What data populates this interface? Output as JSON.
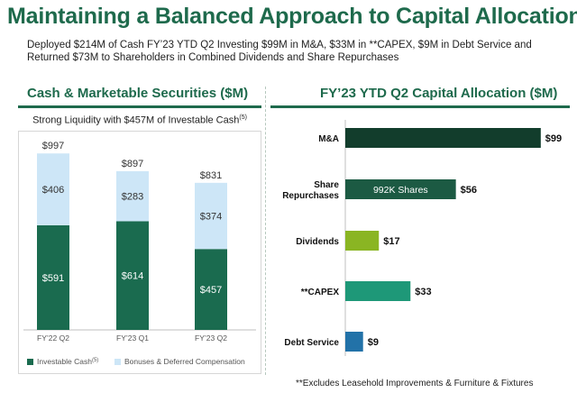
{
  "header": {
    "title": "Maintaining a Balanced Approach to Capital Allocation",
    "subtitle": "Deployed $214M of Cash FY’23 YTD Q2 Investing $99M in M&A, $33M in **CAPEX, $9M in Debt Service and Returned $73M to Shareholders in Combined Dividends and Share Repurchases"
  },
  "footnote": "**Excludes Leasehold Improvements & Furniture & Fixtures",
  "chart_data": [
    {
      "type": "bar",
      "stacked": true,
      "title": "Cash & Marketable Securities ($M)",
      "subtitle": "Strong Liquidity with $457M of Investable Cash",
      "subtitle_superscript": "(5)",
      "categories": [
        "FY’22 Q2",
        "FY’23 Q1",
        "FY’23 Q2"
      ],
      "series": [
        {
          "name": "Investable Cash",
          "superscript": "(5)",
          "color": "#1a6b4f",
          "values": [
            591,
            614,
            457
          ]
        },
        {
          "name": "Bonuses & Deferred Compensation",
          "color": "#cde6f7",
          "values": [
            406,
            283,
            374
          ]
        }
      ],
      "totals": [
        "$997",
        "$897",
        "$831"
      ],
      "value_labels": [
        [
          "$591",
          "$614",
          "$457"
        ],
        [
          "$406",
          "$283",
          "$374"
        ]
      ],
      "ylim": [
        0,
        1100
      ],
      "legend": "bottom",
      "grid": false
    },
    {
      "type": "bar",
      "orientation": "horizontal",
      "title": "FY’23 YTD Q2 Capital Allocation ($M)",
      "categories": [
        "M&A",
        "Share Repurchases",
        "Dividends",
        "**CAPEX",
        "Debt Service"
      ],
      "values": [
        99,
        56,
        17,
        33,
        9
      ],
      "value_labels": [
        "$99",
        "$56",
        "$17",
        "$33",
        "$9"
      ],
      "colors": [
        "#123d2c",
        "#1c5a43",
        "#8ab523",
        "#1e9878",
        "#2272a8"
      ],
      "bar_annotations": [
        "",
        "992K Shares",
        "",
        "",
        ""
      ],
      "xlim": [
        0,
        100
      ],
      "grid": false
    }
  ]
}
